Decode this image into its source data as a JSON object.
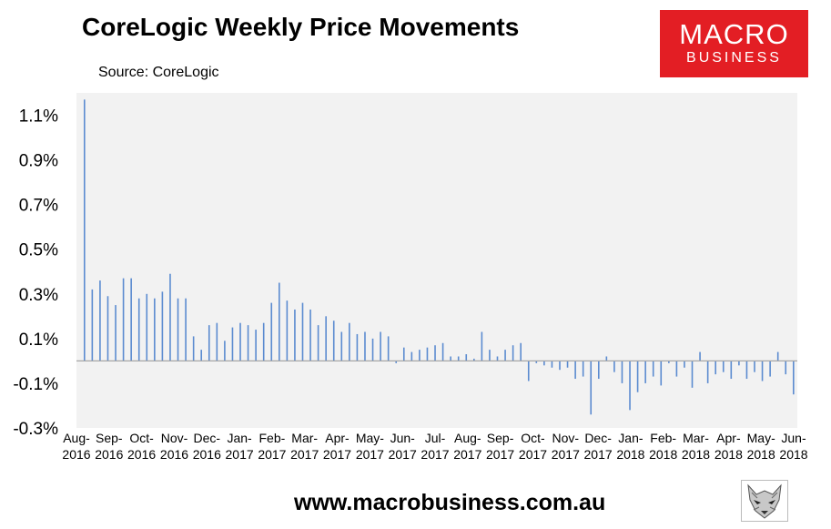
{
  "header": {
    "title": "CoreLogic Weekly Price Movements",
    "source": "Source: CoreLogic"
  },
  "logo": {
    "line1": "MACRO",
    "line2": "BUSINESS",
    "color": "#e31e24"
  },
  "footer": {
    "url": "www.macrobusiness.com.au",
    "mascot_icon": "fox-head-icon"
  },
  "colors": {
    "bar": "#5b8bd0",
    "plot_bg": "#f2f2f2",
    "baseline": "#a6a6a6"
  },
  "chart_data": {
    "type": "bar",
    "title": "CoreLogic Weekly Price Movements",
    "xlabel": "",
    "ylabel": "",
    "ylim": [
      -0.003,
      0.012
    ],
    "grid": false,
    "y_ticks": [
      0.011,
      0.009,
      0.007,
      0.005,
      0.003,
      0.001,
      -0.001,
      -0.003
    ],
    "y_tick_labels": [
      "1.1%",
      "0.9%",
      "0.7%",
      "0.5%",
      "0.3%",
      "0.1%",
      "-0.1%",
      "-0.3%"
    ],
    "x_tick_labels": [
      [
        "Aug-",
        "2016"
      ],
      [
        "Sep-",
        "2016"
      ],
      [
        "Oct-",
        "2016"
      ],
      [
        "Nov-",
        "2016"
      ],
      [
        "Dec-",
        "2016"
      ],
      [
        "Jan-",
        "2017"
      ],
      [
        "Feb-",
        "2017"
      ],
      [
        "Mar-",
        "2017"
      ],
      [
        "Apr-",
        "2017"
      ],
      [
        "May-",
        "2017"
      ],
      [
        "Jun-",
        "2017"
      ],
      [
        "Jul-",
        "2017"
      ],
      [
        "Aug-",
        "2017"
      ],
      [
        "Sep-",
        "2017"
      ],
      [
        "Oct-",
        "2017"
      ],
      [
        "Nov-",
        "2017"
      ],
      [
        "Dec-",
        "2017"
      ],
      [
        "Jan-",
        "2018"
      ],
      [
        "Feb-",
        "2018"
      ],
      [
        "Mar-",
        "2018"
      ],
      [
        "Apr-",
        "2018"
      ],
      [
        "May-",
        "2018"
      ],
      [
        "Jun-",
        "2018"
      ]
    ],
    "series": [
      {
        "values": [
          0.0117,
          0.0032,
          0.0036,
          0.0029,
          0.0025,
          0.0037,
          0.0037,
          0.0028,
          0.003,
          0.0028,
          0.0031,
          0.0039,
          0.0028,
          0.0028,
          0.0011,
          0.0005,
          0.0016,
          0.0017,
          0.0009,
          0.0015,
          0.0017,
          0.0016,
          0.0014,
          0.0017,
          0.0026,
          0.0035,
          0.0027,
          0.0023,
          0.0026,
          0.0023,
          0.0016,
          0.002,
          0.0018,
          0.0013,
          0.0017,
          0.0012,
          0.0013,
          0.001,
          0.0013,
          0.0011,
          -0.0001,
          0.0006,
          0.0004,
          0.0005,
          0.0006,
          0.0007,
          0.0008,
          0.0002,
          0.0002,
          0.0003,
          0.0001,
          0.0013,
          0.0005,
          0.0002,
          0.0005,
          0.0007,
          0.0008,
          -0.0009,
          -0.0001,
          -0.0002,
          -0.0003,
          -0.0004,
          -0.0003,
          -0.0008,
          -0.0007,
          -0.0024,
          -0.0008,
          0.0002,
          -0.0005,
          -0.001,
          -0.0022,
          -0.0014,
          -0.001,
          -0.0007,
          -0.0011,
          -0.0001,
          -0.0007,
          -0.0003,
          -0.0012,
          0.0004,
          -0.001,
          -0.0006,
          -0.0005,
          -0.0008,
          -0.0002,
          -0.0008,
          -0.0005,
          -0.0009,
          -0.0007,
          0.0004,
          -0.0006,
          -0.0015
        ]
      }
    ]
  }
}
